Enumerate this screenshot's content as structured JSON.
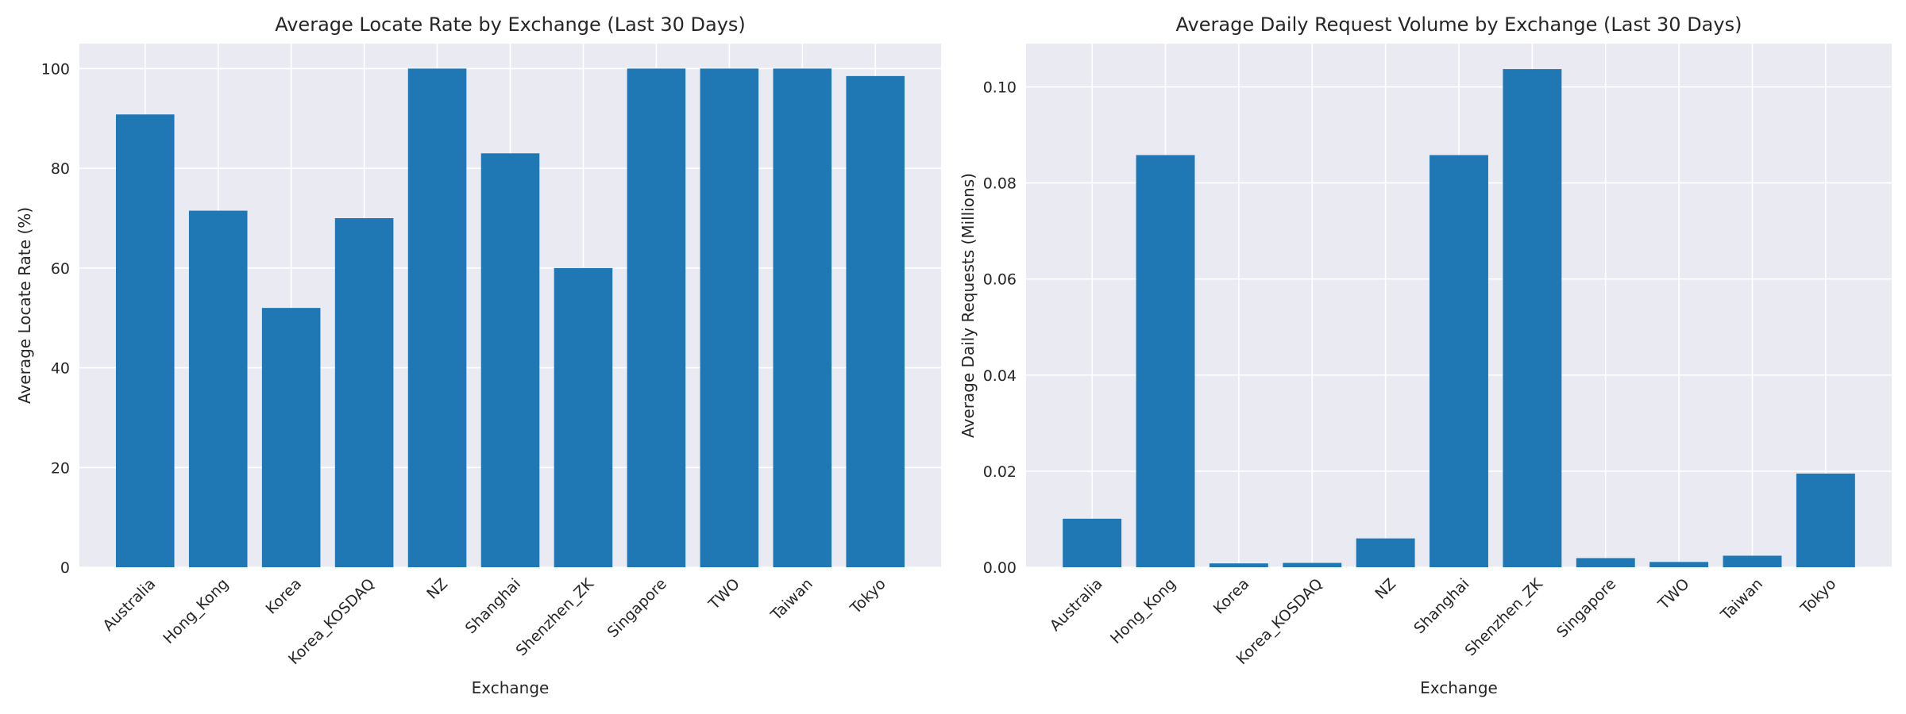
{
  "chart_data": [
    {
      "type": "bar",
      "title": "Average Locate Rate by Exchange (Last 30 Days)",
      "xlabel": "Exchange",
      "ylabel": "Average Locate Rate (%)",
      "categories": [
        "Australia",
        "Hong_Kong",
        "Korea",
        "Korea_KOSDAQ",
        "NZ",
        "Shanghai",
        "Shenzhen_ZK",
        "Singapore",
        "TWO",
        "Taiwan",
        "Tokyo"
      ],
      "values": [
        90.8,
        71.5,
        52.0,
        70.0,
        100.0,
        83.0,
        60.0,
        100.0,
        100.0,
        100.0,
        98.5
      ],
      "ylim": [
        0,
        105
      ],
      "yticks": [
        0,
        20,
        40,
        60,
        80,
        100
      ],
      "ytick_labels": [
        "0",
        "20",
        "40",
        "60",
        "80",
        "100"
      ],
      "grid": true,
      "color": "#1f77b4"
    },
    {
      "type": "bar",
      "title": "Average Daily Request Volume by Exchange (Last 30 Days)",
      "xlabel": "Exchange",
      "ylabel": "Average Daily Requests (Millions)",
      "categories": [
        "Australia",
        "Hong_Kong",
        "Korea",
        "Korea_KOSDAQ",
        "NZ",
        "Shanghai",
        "Shenzhen_ZK",
        "Singapore",
        "TWO",
        "Taiwan",
        "Tokyo"
      ],
      "values": [
        0.0101,
        0.0858,
        0.0008,
        0.0009,
        0.006,
        0.0858,
        0.1037,
        0.0019,
        0.0011,
        0.0024,
        0.0195
      ],
      "ylim": [
        0,
        0.109
      ],
      "yticks": [
        0,
        0.02,
        0.04,
        0.06,
        0.08,
        0.1
      ],
      "ytick_labels": [
        "0.00",
        "0.02",
        "0.04",
        "0.06",
        "0.08",
        "0.10"
      ],
      "grid": true,
      "color": "#1f77b4"
    }
  ]
}
